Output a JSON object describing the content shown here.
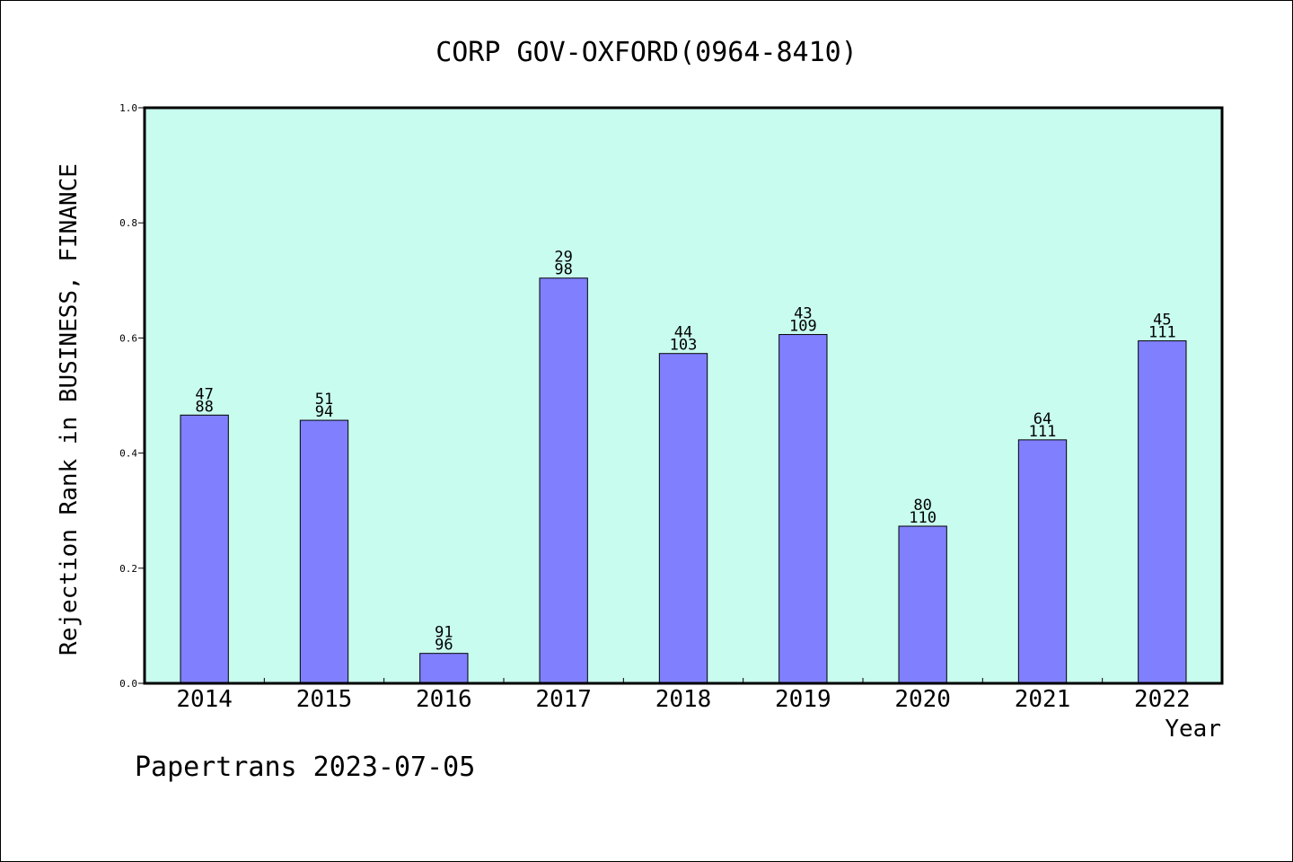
{
  "chart_data": {
    "type": "bar",
    "title": "CORP GOV-OXFORD(0964-8410)",
    "xlabel": "Year",
    "ylabel": "Rejection Rank in BUSINESS, FINANCE",
    "categories": [
      "2014",
      "2015",
      "2016",
      "2017",
      "2018",
      "2019",
      "2020",
      "2021",
      "2022"
    ],
    "values": [
      0.466,
      0.457,
      0.052,
      0.704,
      0.573,
      0.606,
      0.273,
      0.423,
      0.595
    ],
    "labels_top": [
      "47",
      "51",
      "91",
      "29",
      "44",
      "43",
      "80",
      "64",
      "45"
    ],
    "labels_bottom": [
      "88",
      "94",
      "96",
      "98",
      "103",
      "109",
      "110",
      "111",
      "111"
    ],
    "ylim": [
      0,
      1.0
    ],
    "yticks": [
      "0.0",
      "0.2",
      "0.4",
      "0.6",
      "0.8",
      "1.0"
    ],
    "grid": false,
    "plot_background": "#c8fcee",
    "bar_color": "#8080ff"
  },
  "footer": "Papertrans 2023-07-05"
}
